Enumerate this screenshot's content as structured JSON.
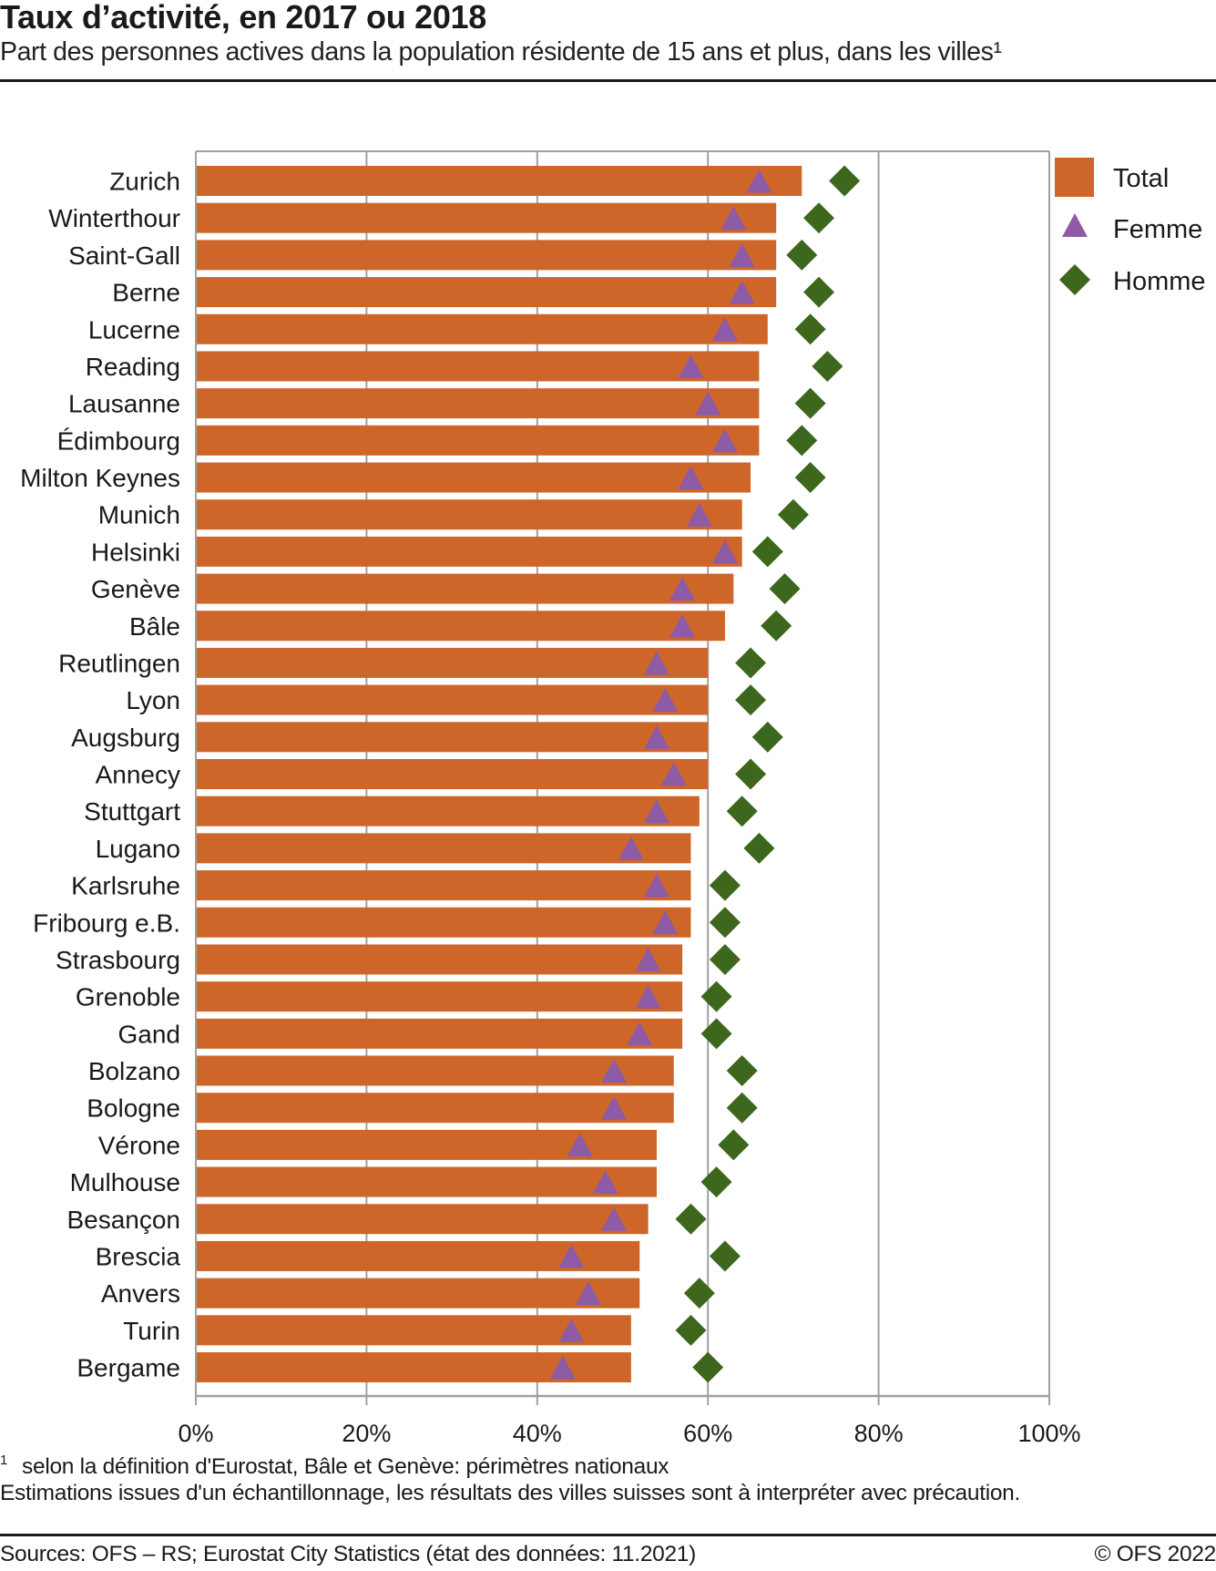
{
  "header": {
    "title": "Taux d’activité, en 2017 ou 2018",
    "subtitle": "Part des personnes actives dans la population résidente de 15 ans et plus, dans les villes¹"
  },
  "footer": {
    "footnote_marker": "1",
    "footnote": "selon la définition d'Eurostat, Bâle et Genève: périmètres nationaux",
    "note": "Estimations issues d'un échantillonnage, les résultats des villes suisses sont à interpréter avec précaution.",
    "source": "Sources: OFS – RS; Eurostat City Statistics (état des données: 11.2021)",
    "copyright": "© OFS 2022"
  },
  "chart_data": {
    "type": "bar",
    "orientation": "horizontal",
    "title": "Taux d’activité, en 2017 ou 2018",
    "subtitle": "Part des personnes actives dans la population résidente de 15 ans et plus, dans les villes¹",
    "xlabel": "",
    "ylabel": "",
    "xlim": [
      0,
      100
    ],
    "x_ticks": [
      "0%",
      "20%",
      "40%",
      "60%",
      "80%",
      "100%"
    ],
    "x_tick_values": [
      0,
      20,
      40,
      60,
      80,
      100
    ],
    "grid": true,
    "legend_position": "right",
    "categories": [
      "Zurich",
      "Winterthour",
      "Saint-Gall",
      "Berne",
      "Lucerne",
      "Reading",
      "Lausanne",
      "Édimbourg",
      "Milton Keynes",
      "Munich",
      "Helsinki",
      "Genève",
      "Bâle",
      "Reutlingen",
      "Lyon",
      "Augsburg",
      "Annecy",
      "Stuttgart",
      "Lugano",
      "Karlsruhe",
      "Fribourg e.B.",
      "Strasbourg",
      "Grenoble",
      "Gand",
      "Bolzano",
      "Bologne",
      "Vérone",
      "Mulhouse",
      "Besançon",
      "Brescia",
      "Anvers",
      "Turin",
      "Bergame"
    ],
    "series": [
      {
        "name": "Total",
        "marker": "bar",
        "color": "#CD6628",
        "values": [
          71,
          68,
          68,
          68,
          67,
          66,
          66,
          66,
          65,
          64,
          64,
          63,
          62,
          60,
          60,
          60,
          60,
          59,
          58,
          58,
          58,
          57,
          57,
          57,
          56,
          56,
          54,
          54,
          53,
          52,
          52,
          51,
          51
        ]
      },
      {
        "name": "Femme",
        "marker": "triangle",
        "color": "#8E5BA6",
        "values": [
          66,
          63,
          64,
          64,
          62,
          58,
          60,
          62,
          58,
          59,
          62,
          57,
          57,
          54,
          55,
          54,
          56,
          54,
          51,
          54,
          55,
          53,
          53,
          52,
          49,
          49,
          45,
          48,
          49,
          44,
          46,
          44,
          43
        ]
      },
      {
        "name": "Homme",
        "marker": "diamond",
        "color": "#3D671D",
        "values": [
          76,
          73,
          71,
          73,
          72,
          74,
          72,
          71,
          72,
          70,
          67,
          69,
          68,
          65,
          65,
          67,
          65,
          64,
          66,
          62,
          62,
          62,
          61,
          61,
          64,
          64,
          63,
          61,
          58,
          62,
          59,
          58,
          60
        ]
      }
    ]
  }
}
